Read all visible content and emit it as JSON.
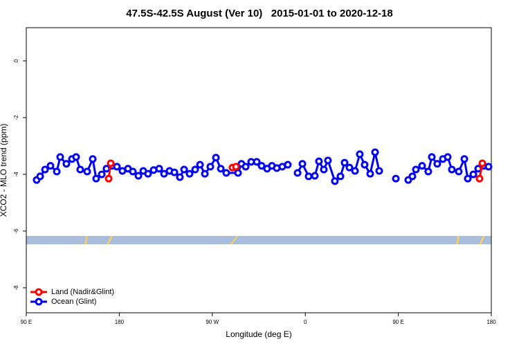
{
  "chart_data": {
    "type": "line",
    "title": "47.5S-42.5S August (Ver 10)   2015-01-01 to 2020-12-18",
    "x_label": "Longitude (deg E)",
    "y_label": "XCO2 - MLO trend (ppm)",
    "xlim": [
      90,
      540
    ],
    "ylim": [
      -8.88,
      1.17
    ],
    "xticks": [
      {
        "value": 90,
        "label": "90 E"
      },
      180,
      {
        "value": 270,
        "label": "90 W"
      },
      {
        "value": 360,
        "label": "0"
      },
      {
        "value": 450,
        "label": "90 E"
      },
      {
        "value": 540,
        "label": "180"
      }
    ],
    "yticks": [
      0,
      -2,
      -4,
      -6,
      -8
    ],
    "legend_position": "bottom-left",
    "series": [
      {
        "name": "Land (Nadir&Glint)",
        "color": "#ff0000",
        "x": [
          169.7,
          171.7,
          null,
          289.5,
          292.9,
          null,
          528.6,
          531.3
        ],
        "values": [
          -4.15,
          -3.61,
          null,
          -3.76,
          -3.73,
          null,
          -4.15,
          -3.61
        ]
      },
      {
        "name": "Ocean (Glint)",
        "color": "#0000ee",
        "x": [
          100.0,
          103.4,
          108.1,
          113.4,
          119.5,
          122.8,
          128.8,
          134.2,
          138.2,
          142.2,
          148.9,
          154.3,
          157.6,
          163.0,
          167.6,
          173.0,
          177.7,
          183.0,
          188.4,
          193.1,
          198.5,
          203.2,
          207.8,
          213.2,
          218.6,
          223.3,
          228.6,
          233.3,
          238.6,
          242.7,
          248.0,
          253.4,
          258.1,
          262.8,
          268.1,
          273.5,
          278.2,
          283.5,
          294.9,
          298.2,
          302.3,
          307.6,
          313.0,
          317.7,
          323.0,
          327.7,
          332.4,
          337.7,
          343.1,
          null,
          352.5,
          357.2,
          363.2,
          369.2,
          373.2,
          377.9,
          381.9,
          388.6,
          394.0,
          398.0,
          402.7,
          408.1,
          412.7,
          417.4,
          422.8,
          427.5,
          431.5,
          null,
          447.6,
          null,
          459.6,
          463.6,
          467.0,
          473.0,
          479.0,
          482.4,
          487.7,
          493.1,
          497.8,
          501.8,
          508.5,
          513.9,
          517.2,
          522.6,
          527.3,
          532.6,
          537.3
        ],
        "values": [
          -4.2,
          -4.07,
          -3.83,
          -3.7,
          -3.9,
          -3.39,
          -3.63,
          -3.46,
          -3.39,
          -3.83,
          -3.9,
          -3.46,
          -4.15,
          -4.0,
          -3.8,
          -3.7,
          -3.73,
          -3.88,
          -3.8,
          -3.9,
          -4.05,
          -3.88,
          -3.98,
          -3.85,
          -3.8,
          -3.98,
          -3.88,
          -3.93,
          -4.1,
          -3.83,
          -3.98,
          -3.83,
          -3.66,
          -3.98,
          -3.73,
          -3.41,
          -3.8,
          -3.95,
          -3.95,
          -3.63,
          -3.73,
          -3.56,
          -3.56,
          -3.7,
          -3.8,
          -3.7,
          -3.78,
          -3.73,
          -3.66,
          null,
          -3.95,
          -3.63,
          -4.07,
          -4.05,
          -3.54,
          -3.83,
          -3.51,
          -4.24,
          -4.07,
          -3.59,
          -3.76,
          -3.88,
          -3.29,
          -3.66,
          -3.98,
          -3.22,
          -3.88,
          null,
          -4.15,
          null,
          -4.2,
          -4.07,
          -3.83,
          -3.7,
          -3.9,
          -3.39,
          -3.63,
          -3.46,
          -3.39,
          -3.83,
          -3.9,
          -3.46,
          -4.15,
          -4.0,
          -3.8,
          -3.7,
          -3.73
        ]
      }
    ]
  }
}
